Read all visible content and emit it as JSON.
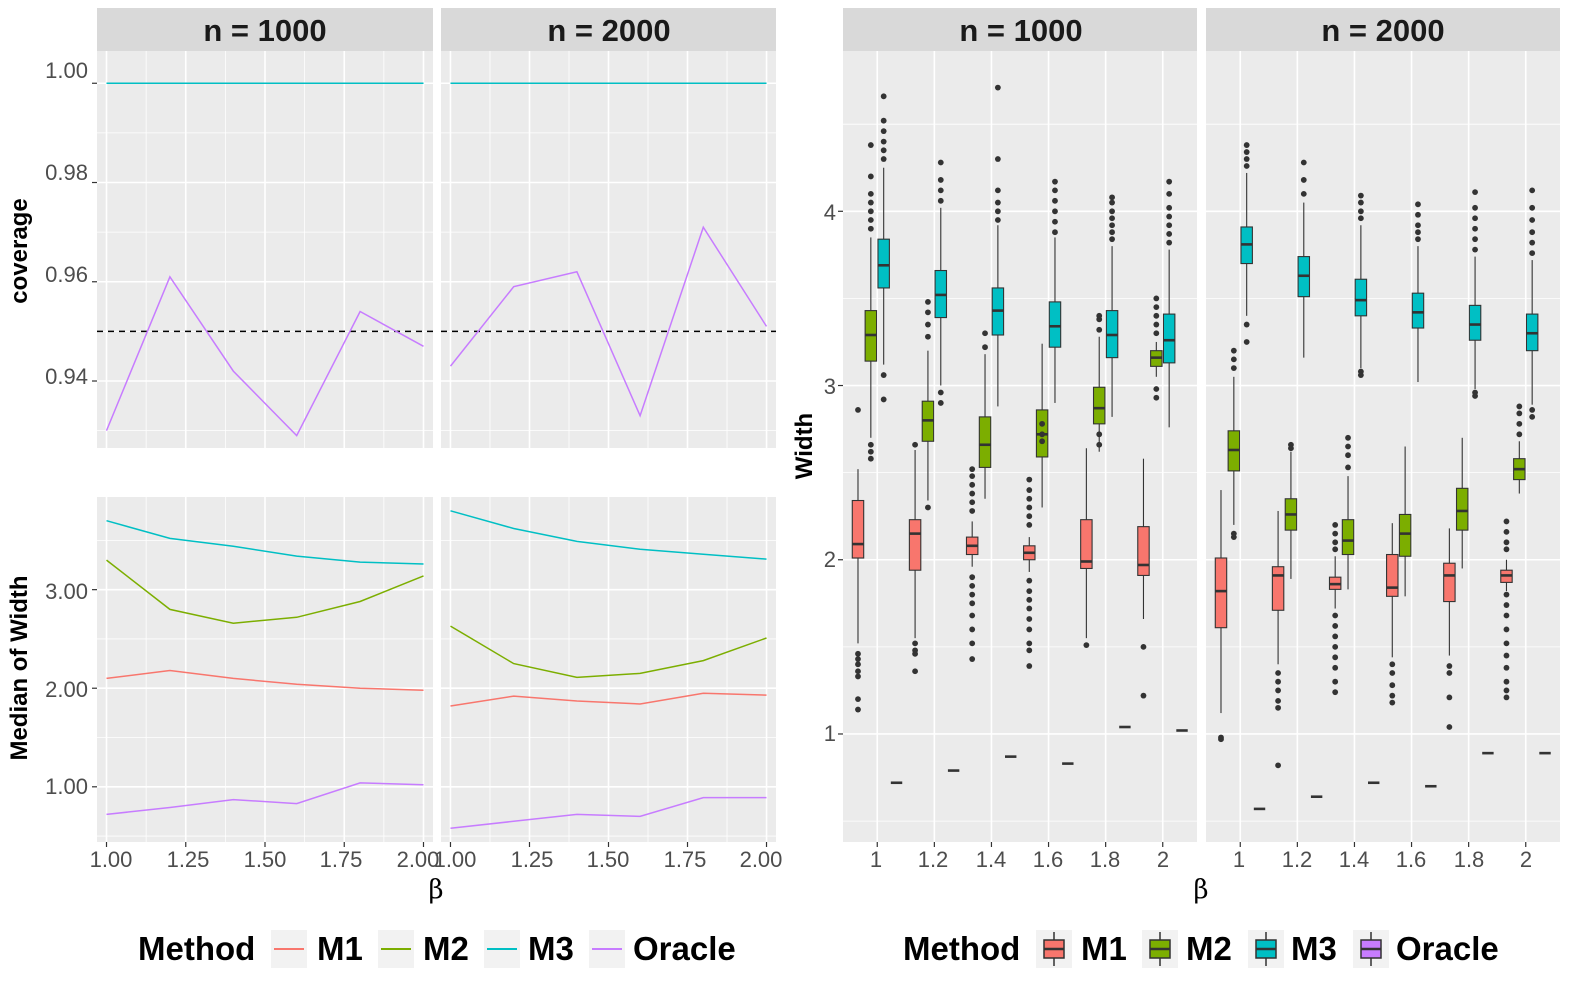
{
  "colors": {
    "M1": "#F8766D",
    "M2": "#7CAE00",
    "M3": "#00BFC4",
    "Oracle": "#C77CFF"
  },
  "legend": {
    "title": "Method",
    "items": [
      {
        "method": "M1",
        "label": "M1"
      },
      {
        "method": "M2",
        "label": "M2"
      },
      {
        "method": "M3",
        "label": "M3"
      },
      {
        "method": "Oracle",
        "label": "Oracle"
      }
    ]
  },
  "chart_data": [
    {
      "type": "line",
      "id": "coverage",
      "ylabel": "coverage",
      "xlabel": "β",
      "xlim": [
        0.97,
        2.03
      ],
      "ylim": [
        0.9265,
        1.0065
      ],
      "yticks": [
        0.94,
        0.96,
        0.98,
        1.0
      ],
      "ytick_labels": [
        "0.94",
        "0.96",
        "0.98",
        "1.00"
      ],
      "reference_line": 0.95,
      "x": [
        1.0,
        1.2,
        1.4,
        1.6,
        1.8,
        2.0
      ],
      "panels": [
        {
          "label": "n = 1000",
          "series": [
            {
              "name": "M3",
              "values": [
                1.0,
                1.0,
                1.0,
                1.0,
                1.0,
                1.0
              ]
            },
            {
              "name": "Oracle",
              "values": [
                0.93,
                0.961,
                0.942,
                0.929,
                0.954,
                0.947
              ]
            }
          ]
        },
        {
          "label": "n = 2000",
          "series": [
            {
              "name": "M3",
              "values": [
                1.0,
                1.0,
                1.0,
                1.0,
                1.0,
                1.0
              ]
            },
            {
              "name": "Oracle",
              "values": [
                0.943,
                0.959,
                0.962,
                0.933,
                0.971,
                0.951
              ]
            }
          ]
        }
      ]
    },
    {
      "type": "line",
      "id": "median",
      "ylabel": "Median of Width",
      "xlabel": "β",
      "xlim": [
        0.97,
        2.03
      ],
      "ylim": [
        0.44,
        3.94
      ],
      "xticks": [
        1.0,
        1.25,
        1.5,
        1.75,
        2.0
      ],
      "xtick_labels": [
        "1.00",
        "1.25",
        "1.50",
        "1.75",
        "2.00"
      ],
      "yticks": [
        1.0,
        2.0,
        3.0
      ],
      "ytick_labels": [
        "1.00",
        "2.00",
        "3.00"
      ],
      "x": [
        1.0,
        1.2,
        1.4,
        1.6,
        1.8,
        2.0
      ],
      "panels": [
        {
          "label": "n = 1000",
          "series": [
            {
              "name": "M1",
              "values": [
                2.1,
                2.18,
                2.1,
                2.04,
                2.0,
                1.98
              ]
            },
            {
              "name": "M2",
              "values": [
                3.3,
                2.8,
                2.66,
                2.72,
                2.88,
                3.14
              ]
            },
            {
              "name": "M3",
              "values": [
                3.7,
                3.52,
                3.44,
                3.34,
                3.28,
                3.26
              ]
            },
            {
              "name": "Oracle",
              "values": [
                0.72,
                0.79,
                0.87,
                0.83,
                1.04,
                1.02
              ]
            }
          ]
        },
        {
          "label": "n = 2000",
          "series": [
            {
              "name": "M1",
              "values": [
                1.82,
                1.92,
                1.87,
                1.84,
                1.95,
                1.93
              ]
            },
            {
              "name": "M2",
              "values": [
                2.63,
                2.25,
                2.11,
                2.15,
                2.28,
                2.51
              ]
            },
            {
              "name": "M3",
              "values": [
                3.8,
                3.62,
                3.49,
                3.41,
                3.36,
                3.31
              ]
            },
            {
              "name": "Oracle",
              "values": [
                0.58,
                0.65,
                0.72,
                0.7,
                0.89,
                0.89
              ]
            }
          ]
        }
      ]
    },
    {
      "type": "box",
      "id": "width",
      "ylabel": "Width",
      "xlabel": "β",
      "ylim": [
        0.38,
        4.92
      ],
      "yticks": [
        1,
        2,
        3,
        4
      ],
      "ytick_labels": [
        "1",
        "2",
        "3",
        "4"
      ],
      "categories": [
        "1",
        "1.2",
        "1.4",
        "1.6",
        "1.8",
        "2"
      ],
      "panels": [
        {
          "label": "n = 1000",
          "groups": [
            {
              "M1": {
                "q1": 2.01,
                "med": 2.09,
                "q3": 2.34,
                "lo": 1.52,
                "hi": 2.52,
                "out": [
                  1.46,
                  1.43,
                  1.4,
                  1.36,
                  1.33,
                  1.2,
                  1.14,
                  2.86
                ]
              },
              "M2": {
                "q1": 3.14,
                "med": 3.29,
                "q3": 3.43,
                "lo": 2.7,
                "hi": 3.85,
                "out": [
                  3.9,
                  3.95,
                  4.0,
                  4.05,
                  4.1,
                  4.2,
                  4.38,
                  2.66,
                  2.62,
                  2.58
                ]
              },
              "M3": {
                "q1": 3.56,
                "med": 3.69,
                "q3": 3.84,
                "lo": 3.12,
                "hi": 4.25,
                "out": [
                  4.3,
                  4.35,
                  4.4,
                  4.46,
                  4.52,
                  4.66,
                  3.06,
                  2.92
                ]
              },
              "Oracle": {
                "med": 0.72
              }
            },
            {
              "M1": {
                "q1": 1.94,
                "med": 2.15,
                "q3": 2.23,
                "lo": 1.55,
                "hi": 2.63,
                "out": [
                  1.52,
                  1.48,
                  1.46,
                  1.36,
                  2.66
                ]
              },
              "M2": {
                "q1": 2.68,
                "med": 2.8,
                "q3": 2.91,
                "lo": 2.34,
                "hi": 3.2,
                "out": [
                  3.28,
                  3.35,
                  3.42,
                  3.48,
                  2.3
                ]
              },
              "M3": {
                "q1": 3.39,
                "med": 3.52,
                "q3": 3.66,
                "lo": 3.0,
                "hi": 4.02,
                "out": [
                  4.06,
                  4.12,
                  4.18,
                  4.28,
                  2.96,
                  2.9
                ]
              },
              "Oracle": {
                "med": 0.79
              }
            },
            {
              "M1": {
                "q1": 2.03,
                "med": 2.08,
                "q3": 2.13,
                "lo": 1.96,
                "hi": 2.22,
                "out": [
                  2.28,
                  2.33,
                  2.38,
                  2.43,
                  2.48,
                  2.52,
                  1.9,
                  1.85,
                  1.8,
                  1.75,
                  1.68,
                  1.6,
                  1.52,
                  1.43
                ]
              },
              "M2": {
                "q1": 2.53,
                "med": 2.66,
                "q3": 2.82,
                "lo": 2.35,
                "hi": 3.18,
                "out": [
                  3.22,
                  3.3
                ]
              },
              "M3": {
                "q1": 3.29,
                "med": 3.43,
                "q3": 3.56,
                "lo": 2.88,
                "hi": 3.92,
                "out": [
                  3.95,
                  4.0,
                  4.05,
                  4.12,
                  4.3,
                  4.71
                ]
              },
              "Oracle": {
                "med": 0.87
              }
            },
            {
              "M1": {
                "q1": 2.0,
                "med": 2.04,
                "q3": 2.08,
                "lo": 1.93,
                "hi": 2.13,
                "out": [
                  2.2,
                  2.25,
                  2.3,
                  2.35,
                  2.4,
                  2.46,
                  1.88,
                  1.82,
                  1.77,
                  1.72,
                  1.66,
                  1.6,
                  1.52,
                  1.48,
                  1.39
                ]
              },
              "M2": {
                "q1": 2.59,
                "med": 2.72,
                "q3": 2.86,
                "lo": 2.3,
                "hi": 3.24,
                "out": [
                  2.78,
                  2.72,
                  2.68
                ]
              },
              "M3": {
                "q1": 3.22,
                "med": 3.34,
                "q3": 3.48,
                "lo": 2.9,
                "hi": 3.85,
                "out": [
                  3.88,
                  3.94,
                  4.0,
                  4.06,
                  4.12,
                  4.17
                ]
              },
              "Oracle": {
                "med": 0.83
              }
            },
            {
              "M1": {
                "q1": 1.95,
                "med": 1.99,
                "q3": 2.23,
                "lo": 1.55,
                "hi": 2.64,
                "out": [
                  1.51
                ]
              },
              "M2": {
                "q1": 2.78,
                "med": 2.87,
                "q3": 2.99,
                "lo": 2.62,
                "hi": 3.28,
                "out": [
                  3.32,
                  3.38,
                  3.4,
                  2.72,
                  2.66
                ]
              },
              "M3": {
                "q1": 3.16,
                "med": 3.29,
                "q3": 3.43,
                "lo": 2.82,
                "hi": 3.8,
                "out": [
                  3.84,
                  3.88,
                  3.92,
                  3.96,
                  4.0,
                  4.05,
                  4.08
                ]
              },
              "Oracle": {
                "med": 1.04
              }
            },
            {
              "M1": {
                "q1": 1.91,
                "med": 1.97,
                "q3": 2.19,
                "lo": 1.66,
                "hi": 2.58,
                "out": [
                  1.5,
                  1.22
                ]
              },
              "M2": {
                "q1": 3.11,
                "med": 3.16,
                "q3": 3.2,
                "lo": 3.05,
                "hi": 3.25,
                "out": [
                  3.3,
                  3.35,
                  3.4,
                  3.45,
                  3.5,
                  2.98,
                  2.93
                ]
              },
              "M3": {
                "q1": 3.13,
                "med": 3.26,
                "q3": 3.41,
                "lo": 2.76,
                "hi": 3.78,
                "out": [
                  3.82,
                  3.87,
                  3.92,
                  3.97,
                  4.02,
                  4.1,
                  4.17
                ]
              },
              "Oracle": {
                "med": 1.02
              }
            }
          ]
        },
        {
          "label": "n = 2000",
          "groups": [
            {
              "M1": {
                "q1": 1.61,
                "med": 1.82,
                "q3": 2.01,
                "lo": 1.12,
                "hi": 2.4,
                "out": [
                  0.98,
                  0.97
                ]
              },
              "M2": {
                "q1": 2.51,
                "med": 2.63,
                "q3": 2.74,
                "lo": 2.2,
                "hi": 3.05,
                "out": [
                  3.1,
                  3.15,
                  3.2,
                  2.15,
                  2.13
                ]
              },
              "M3": {
                "q1": 3.7,
                "med": 3.81,
                "q3": 3.91,
                "lo": 3.4,
                "hi": 4.22,
                "out": [
                  4.26,
                  4.3,
                  4.34,
                  4.38,
                  3.35,
                  3.25
                ]
              },
              "Oracle": {
                "med": 0.57
              }
            },
            {
              "M1": {
                "q1": 1.71,
                "med": 1.91,
                "q3": 1.96,
                "lo": 1.4,
                "hi": 2.28,
                "out": [
                  1.35,
                  1.3,
                  1.25,
                  1.19,
                  1.15,
                  0.82
                ]
              },
              "M2": {
                "q1": 2.17,
                "med": 2.26,
                "q3": 2.35,
                "lo": 1.89,
                "hi": 2.62,
                "out": [
                  2.66,
                  2.64
                ]
              },
              "M3": {
                "q1": 3.51,
                "med": 3.63,
                "q3": 3.74,
                "lo": 3.16,
                "hi": 4.05,
                "out": [
                  4.1,
                  4.18,
                  4.28
                ]
              },
              "Oracle": {
                "med": 0.64
              }
            },
            {
              "M1": {
                "q1": 1.83,
                "med": 1.86,
                "q3": 1.9,
                "lo": 1.72,
                "hi": 2.02,
                "out": [
                  2.06,
                  2.1,
                  2.15,
                  2.2,
                  1.68,
                  1.62,
                  1.56,
                  1.5,
                  1.44,
                  1.38,
                  1.3,
                  1.24
                ]
              },
              "M2": {
                "q1": 2.03,
                "med": 2.11,
                "q3": 2.23,
                "lo": 1.83,
                "hi": 2.48,
                "out": [
                  2.53,
                  2.6,
                  2.65,
                  2.7
                ]
              },
              "M3": {
                "q1": 3.4,
                "med": 3.49,
                "q3": 3.61,
                "lo": 3.1,
                "hi": 3.92,
                "out": [
                  3.96,
                  4.0,
                  4.05,
                  4.09,
                  3.08,
                  3.06
                ]
              },
              "Oracle": {
                "med": 0.72
              }
            },
            {
              "M1": {
                "q1": 1.79,
                "med": 1.84,
                "q3": 2.03,
                "lo": 1.44,
                "hi": 2.21,
                "out": [
                  1.4,
                  1.35,
                  1.28,
                  1.22,
                  1.18
                ]
              },
              "M2": {
                "q1": 2.02,
                "med": 2.15,
                "q3": 2.26,
                "lo": 1.79,
                "hi": 2.65,
                "out": []
              },
              "M3": {
                "q1": 3.33,
                "med": 3.42,
                "q3": 3.53,
                "lo": 3.02,
                "hi": 3.8,
                "out": [
                  3.84,
                  3.88,
                  3.92,
                  3.98,
                  4.04
                ]
              },
              "Oracle": {
                "med": 0.7
              }
            },
            {
              "M1": {
                "q1": 1.76,
                "med": 1.91,
                "q3": 1.98,
                "lo": 1.45,
                "hi": 2.18,
                "out": [
                  1.39,
                  1.35,
                  1.21,
                  1.04
                ]
              },
              "M2": {
                "q1": 2.17,
                "med": 2.28,
                "q3": 2.41,
                "lo": 1.95,
                "hi": 2.7,
                "out": []
              },
              "M3": {
                "q1": 3.26,
                "med": 3.35,
                "q3": 3.46,
                "lo": 2.98,
                "hi": 3.74,
                "out": [
                  3.78,
                  3.84,
                  3.9,
                  3.96,
                  4.02,
                  4.11,
                  2.96,
                  2.94
                ]
              },
              "Oracle": {
                "med": 0.89
              }
            },
            {
              "M1": {
                "q1": 1.87,
                "med": 1.91,
                "q3": 1.94,
                "lo": 1.82,
                "hi": 2.0,
                "out": [
                  2.06,
                  2.1,
                  2.16,
                  2.22,
                  1.8,
                  1.74,
                  1.68,
                  1.6,
                  1.52,
                  1.45,
                  1.38,
                  1.3,
                  1.25,
                  1.21
                ]
              },
              "M2": {
                "q1": 2.46,
                "med": 2.52,
                "q3": 2.58,
                "lo": 2.38,
                "hi": 2.68,
                "out": [
                  2.72,
                  2.78,
                  2.84,
                  2.88
                ]
              },
              "M3": {
                "q1": 3.2,
                "med": 3.3,
                "q3": 3.41,
                "lo": 2.89,
                "hi": 3.72,
                "out": [
                  3.76,
                  3.82,
                  3.88,
                  3.95,
                  4.02,
                  4.12,
                  2.86,
                  2.82
                ]
              },
              "Oracle": {
                "med": 0.89
              }
            }
          ]
        }
      ]
    }
  ]
}
